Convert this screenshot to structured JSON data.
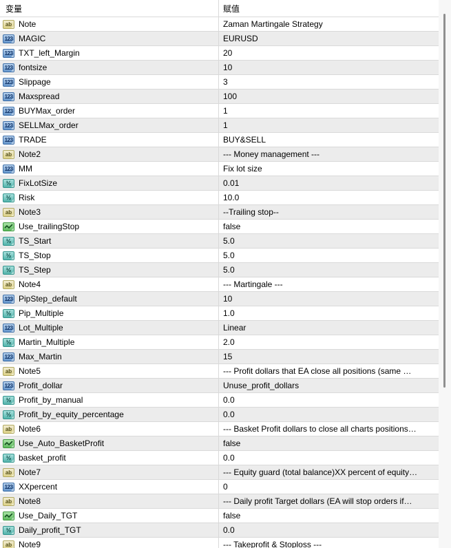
{
  "header": {
    "variable_col": "变量",
    "value_col": "赋值"
  },
  "icons": {
    "string": {
      "glyph": "ab",
      "color": "#dcd187"
    },
    "int": {
      "glyph": "123",
      "color": "#6293c9"
    },
    "double": {
      "glyph": "½",
      "color": "#53b3ab"
    },
    "bool": {
      "glyph": "✓",
      "color": "#5cb85c"
    }
  },
  "colors": {
    "row_alt_bg": "#ececec",
    "grid_line": "#d9d9d9",
    "scrollbar_thumb": "#8f8f8f",
    "icon_string_text": "#55511a",
    "icon_int_text": "#0d2f63",
    "icon_double_text": "#0c4743",
    "icon_bool_check": "#14501f"
  },
  "rows": [
    {
      "name": "Note",
      "type": "string",
      "value": "Zaman Martingale Strategy"
    },
    {
      "name": "MAGIC",
      "type": "int",
      "value": "EURUSD"
    },
    {
      "name": "TXT_left_Margin",
      "type": "int",
      "value": "20"
    },
    {
      "name": "fontsize",
      "type": "int",
      "value": "10"
    },
    {
      "name": "Slippage",
      "type": "int",
      "value": "3"
    },
    {
      "name": "Maxspread",
      "type": "int",
      "value": "100"
    },
    {
      "name": "BUYMax_order",
      "type": "int",
      "value": "1"
    },
    {
      "name": "SELLMax_order",
      "type": "int",
      "value": "1"
    },
    {
      "name": "TRADE",
      "type": "int",
      "value": "BUY&SELL"
    },
    {
      "name": "Note2",
      "type": "string",
      "value": "--- Money management ---"
    },
    {
      "name": "MM",
      "type": "int",
      "value": "Fix lot size"
    },
    {
      "name": "FixLotSize",
      "type": "double",
      "value": "0.01"
    },
    {
      "name": "Risk",
      "type": "double",
      "value": "10.0"
    },
    {
      "name": "Note3",
      "type": "string",
      "value": "--Trailing stop--"
    },
    {
      "name": "Use_trailingStop",
      "type": "bool",
      "value": "false"
    },
    {
      "name": "TS_Start",
      "type": "double",
      "value": "5.0"
    },
    {
      "name": "TS_Stop",
      "type": "double",
      "value": "5.0"
    },
    {
      "name": "TS_Step",
      "type": "double",
      "value": "5.0"
    },
    {
      "name": "Note4",
      "type": "string",
      "value": "--- Martingale ---"
    },
    {
      "name": "PipStep_default",
      "type": "int",
      "value": "10"
    },
    {
      "name": "Pip_Multiple",
      "type": "double",
      "value": "1.0"
    },
    {
      "name": "Lot_Multiple",
      "type": "int",
      "value": "Linear"
    },
    {
      "name": "Martin_Multiple",
      "type": "double",
      "value": "2.0"
    },
    {
      "name": "Max_Martin",
      "type": "int",
      "value": "15"
    },
    {
      "name": "Note5",
      "type": "string",
      "value": "--- Profit dollars that EA close all positions (same …"
    },
    {
      "name": "Profit_dollar",
      "type": "int",
      "value": "Unuse_profit_dollars"
    },
    {
      "name": "Profit_by_manual",
      "type": "double",
      "value": "0.0"
    },
    {
      "name": "Profit_by_equity_percentage",
      "type": "double",
      "value": "0.0"
    },
    {
      "name": "Note6",
      "type": "string",
      "value": "--- Basket Profit dollars to close all charts positions…"
    },
    {
      "name": "Use_Auto_BasketProfit",
      "type": "bool",
      "value": "false"
    },
    {
      "name": "basket_profit",
      "type": "double",
      "value": "0.0"
    },
    {
      "name": "Note7",
      "type": "string",
      "value": "--- Equity guard (total balance)XX percent of equity…"
    },
    {
      "name": "XXpercent",
      "type": "int",
      "value": "0"
    },
    {
      "name": "Note8",
      "type": "string",
      "value": "--- Daily profit Target dollars (EA will stop orders if…"
    },
    {
      "name": "Use_Daily_TGT",
      "type": "bool",
      "value": "false"
    },
    {
      "name": "Daily_profit_TGT",
      "type": "double",
      "value": "0.0"
    },
    {
      "name": "Note9",
      "type": "string",
      "value": "--- Takeprofit & Stoploss ---"
    }
  ]
}
